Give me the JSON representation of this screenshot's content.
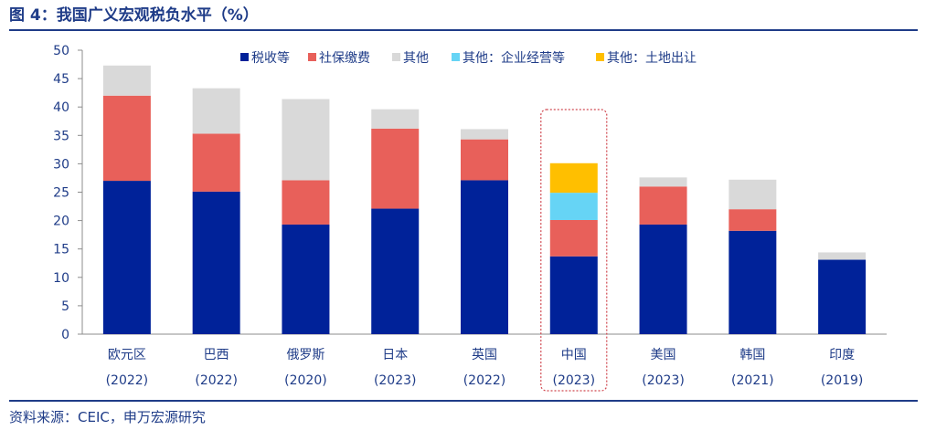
{
  "figure": {
    "title": "图 4：我国广义宏观税负水平（%）",
    "source": "资料来源：CEIC，申万宏源研究"
  },
  "colors": {
    "tax": "#002299",
    "social": "#e8605a",
    "other": "#d9d9d9",
    "enterprise": "#66d4f5",
    "land": "#ffbf00",
    "accent": "#1f3c88",
    "highlight": "#d0474f"
  },
  "chart_data": {
    "type": "bar",
    "stacked": true,
    "title": "我国广义宏观税负水平（%）",
    "xlabel": "",
    "ylabel": "",
    "ylim": [
      0,
      50
    ],
    "yticks": [
      0,
      5,
      10,
      15,
      20,
      25,
      30,
      35,
      40,
      45,
      50
    ],
    "legend_position": "top-right",
    "categories": [
      "欧元区",
      "巴西",
      "俄罗斯",
      "日本",
      "英国",
      "中国",
      "美国",
      "韩国",
      "印度"
    ],
    "years": [
      "(2022)",
      "(2022)",
      "(2020)",
      "(2023)",
      "(2022)",
      "(2023)",
      "(2023)",
      "(2021)",
      "(2019)"
    ],
    "highlight_category": "中国",
    "series": [
      {
        "name": "税收等",
        "color_key": "tax",
        "values": [
          27.0,
          25.1,
          19.3,
          22.1,
          27.1,
          13.7,
          19.3,
          18.2,
          13.1
        ]
      },
      {
        "name": "社保缴费",
        "color_key": "social",
        "values": [
          15.0,
          10.2,
          7.8,
          14.1,
          7.2,
          6.4,
          6.7,
          3.8,
          0.0
        ]
      },
      {
        "name": "其他",
        "color_key": "other",
        "values": [
          5.3,
          8.0,
          14.3,
          3.4,
          1.8,
          0.0,
          1.6,
          5.2,
          1.3
        ]
      },
      {
        "name": "其他：企业经营等",
        "color_key": "enterprise",
        "values": [
          0,
          0,
          0,
          0,
          0,
          4.8,
          0,
          0,
          0
        ]
      },
      {
        "name": "其他：土地出让",
        "color_key": "land",
        "values": [
          0,
          0,
          0,
          0,
          0,
          5.2,
          0,
          0,
          0
        ]
      }
    ]
  }
}
